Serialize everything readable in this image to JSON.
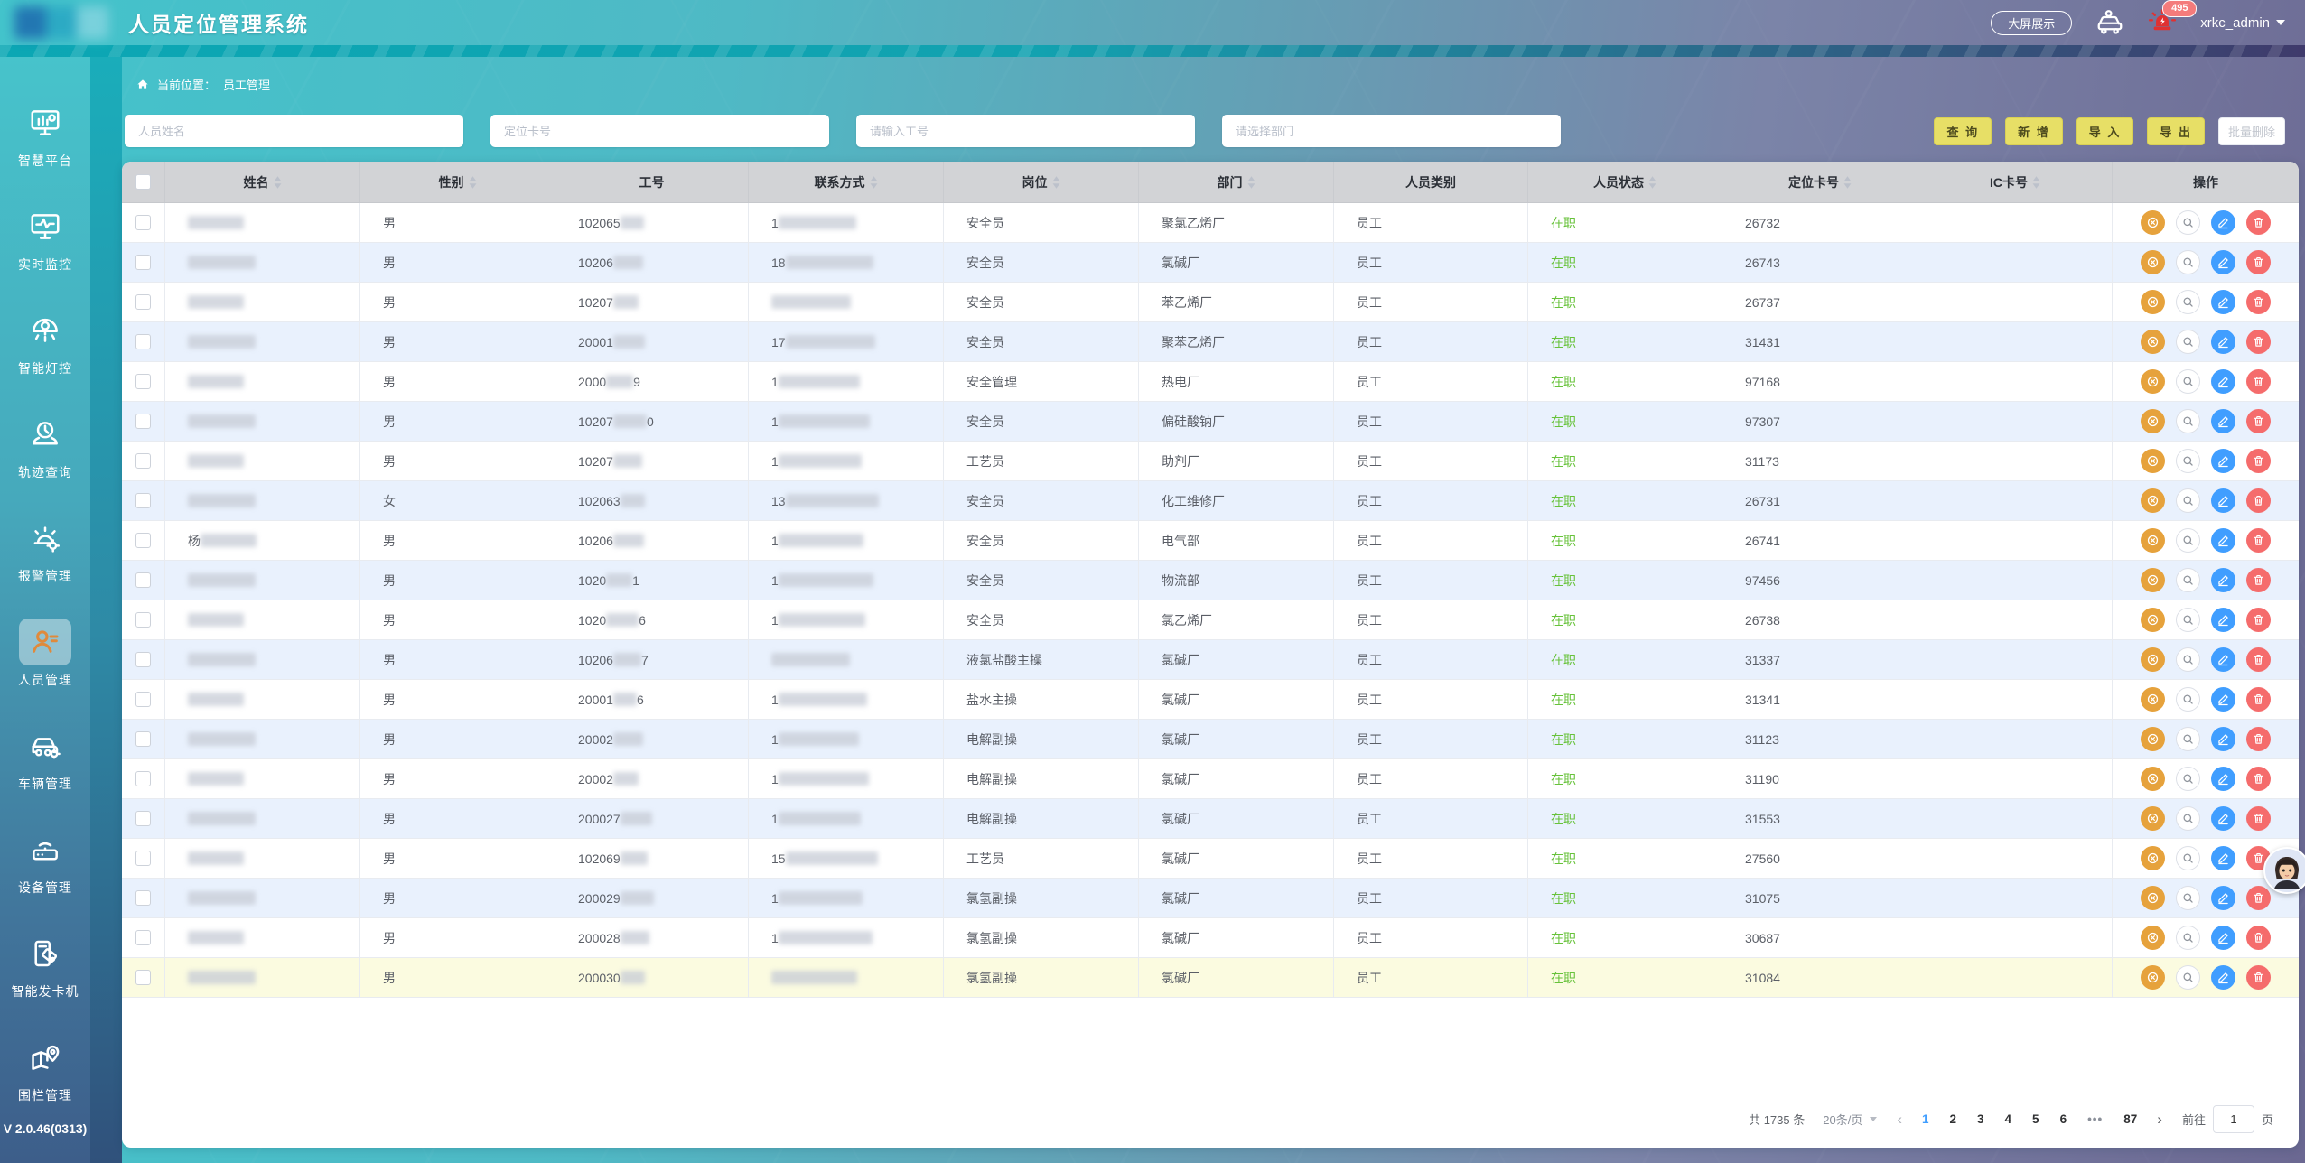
{
  "header": {
    "title": "人员定位管理系统",
    "big_screen_button": "大屏展示",
    "alarm_badge": "495",
    "username": "xrkc_admin"
  },
  "sidebar": {
    "version": "V 2.0.46(0313)",
    "items": [
      {
        "label": "智慧平台",
        "icon": "platform-icon",
        "active": false
      },
      {
        "label": "实时监控",
        "icon": "monitor-icon",
        "active": false
      },
      {
        "label": "智能灯控",
        "icon": "light-icon",
        "active": false
      },
      {
        "label": "轨迹查询",
        "icon": "track-icon",
        "active": false
      },
      {
        "label": "报警管理",
        "icon": "alarm-icon",
        "active": false
      },
      {
        "label": "人员管理",
        "icon": "person-icon",
        "active": true
      },
      {
        "label": "车辆管理",
        "icon": "vehicle-icon",
        "active": false
      },
      {
        "label": "设备管理",
        "icon": "device-icon",
        "active": false
      },
      {
        "label": "智能发卡机",
        "icon": "card-machine-icon",
        "active": false
      },
      {
        "label": "围栏管理",
        "icon": "fence-icon",
        "active": false
      }
    ]
  },
  "breadcrumb": {
    "label": "当前位置：",
    "page": "员工管理"
  },
  "search": {
    "inputs": [
      {
        "placeholder": "人员姓名"
      },
      {
        "placeholder": "定位卡号"
      },
      {
        "placeholder": "请输入工号"
      },
      {
        "placeholder": "请选择部门"
      }
    ],
    "buttons": [
      {
        "label": "查 询"
      },
      {
        "label": "新 增"
      },
      {
        "label": "导 入"
      },
      {
        "label": "导 出"
      }
    ],
    "disabled_button": "批量删除"
  },
  "table": {
    "columns": [
      {
        "label": "",
        "sortable": false
      },
      {
        "label": "姓名",
        "sortable": true
      },
      {
        "label": "性别",
        "sortable": true
      },
      {
        "label": "工号",
        "sortable": false
      },
      {
        "label": "联系方式",
        "sortable": true
      },
      {
        "label": "岗位",
        "sortable": true
      },
      {
        "label": "部门",
        "sortable": true
      },
      {
        "label": "人员类别",
        "sortable": false
      },
      {
        "label": "人员状态",
        "sortable": true
      },
      {
        "label": "定位卡号",
        "sortable": true
      },
      {
        "label": "IC卡号",
        "sortable": true
      },
      {
        "label": "操作",
        "sortable": false
      }
    ],
    "rows": [
      {
        "name_prefix": "",
        "gender": "男",
        "emp_prefix": "102065",
        "emp_suffix": "",
        "phone_prefix": "1",
        "job": "安全员",
        "dept": "聚氯乙烯厂",
        "type": "员工",
        "status": "在职",
        "card": "26732",
        "ic": "",
        "highlight": false
      },
      {
        "name_prefix": "",
        "gender": "男",
        "emp_prefix": "10206",
        "emp_suffix": "",
        "phone_prefix": "18",
        "job": "安全员",
        "dept": "氯碱厂",
        "type": "员工",
        "status": "在职",
        "card": "26743",
        "ic": "",
        "highlight": false
      },
      {
        "name_prefix": "",
        "gender": "男",
        "emp_prefix": "10207",
        "emp_suffix": "",
        "phone_prefix": "",
        "job": "安全员",
        "dept": "苯乙烯厂",
        "type": "员工",
        "status": "在职",
        "card": "26737",
        "ic": "",
        "highlight": false
      },
      {
        "name_prefix": "",
        "gender": "男",
        "emp_prefix": "20001",
        "emp_suffix": "",
        "phone_prefix": "17",
        "job": "安全员",
        "dept": "聚苯乙烯厂",
        "type": "员工",
        "status": "在职",
        "card": "31431",
        "ic": "",
        "highlight": false
      },
      {
        "name_prefix": "",
        "gender": "男",
        "emp_prefix": "2000",
        "emp_suffix": "9",
        "phone_prefix": "1",
        "job": "安全管理",
        "dept": "热电厂",
        "type": "员工",
        "status": "在职",
        "card": "97168",
        "ic": "",
        "highlight": false
      },
      {
        "name_prefix": "",
        "gender": "男",
        "emp_prefix": "10207",
        "emp_suffix": "0",
        "phone_prefix": "1",
        "job": "安全员",
        "dept": "偏硅酸钠厂",
        "type": "员工",
        "status": "在职",
        "card": "97307",
        "ic": "",
        "highlight": false
      },
      {
        "name_prefix": "",
        "gender": "男",
        "emp_prefix": "10207",
        "emp_suffix": "",
        "phone_prefix": "1",
        "job": "工艺员",
        "dept": "助剂厂",
        "type": "员工",
        "status": "在职",
        "card": "31173",
        "ic": "",
        "highlight": false
      },
      {
        "name_prefix": "",
        "gender": "女",
        "emp_prefix": "102063",
        "emp_suffix": "",
        "phone_prefix": "13",
        "job": "安全员",
        "dept": "化工维修厂",
        "type": "员工",
        "status": "在职",
        "card": "26731",
        "ic": "",
        "highlight": false
      },
      {
        "name_prefix": "杨",
        "gender": "男",
        "emp_prefix": "10206",
        "emp_suffix": "",
        "phone_prefix": "1",
        "job": "安全员",
        "dept": "电气部",
        "type": "员工",
        "status": "在职",
        "card": "26741",
        "ic": "",
        "highlight": false
      },
      {
        "name_prefix": "",
        "gender": "男",
        "emp_prefix": "1020",
        "emp_suffix": "1",
        "phone_prefix": "1",
        "job": "安全员",
        "dept": "物流部",
        "type": "员工",
        "status": "在职",
        "card": "97456",
        "ic": "",
        "highlight": false
      },
      {
        "name_prefix": "",
        "gender": "男",
        "emp_prefix": "1020",
        "emp_suffix": "6",
        "phone_prefix": "1",
        "job": "安全员",
        "dept": "氯乙烯厂",
        "type": "员工",
        "status": "在职",
        "card": "26738",
        "ic": "",
        "highlight": false
      },
      {
        "name_prefix": "",
        "gender": "男",
        "emp_prefix": "10206",
        "emp_suffix": "7",
        "phone_prefix": "",
        "job": "液氯盐酸主操",
        "dept": "氯碱厂",
        "type": "员工",
        "status": "在职",
        "card": "31337",
        "ic": "",
        "highlight": false
      },
      {
        "name_prefix": "",
        "gender": "男",
        "emp_prefix": "20001",
        "emp_suffix": "6",
        "phone_prefix": "1",
        "job": "盐水主操",
        "dept": "氯碱厂",
        "type": "员工",
        "status": "在职",
        "card": "31341",
        "ic": "",
        "highlight": false
      },
      {
        "name_prefix": "",
        "gender": "男",
        "emp_prefix": "20002",
        "emp_suffix": "",
        "phone_prefix": "1",
        "job": "电解副操",
        "dept": "氯碱厂",
        "type": "员工",
        "status": "在职",
        "card": "31123",
        "ic": "",
        "highlight": false
      },
      {
        "name_prefix": "",
        "gender": "男",
        "emp_prefix": "20002",
        "emp_suffix": "",
        "phone_prefix": "1",
        "job": "电解副操",
        "dept": "氯碱厂",
        "type": "员工",
        "status": "在职",
        "card": "31190",
        "ic": "",
        "highlight": false
      },
      {
        "name_prefix": "",
        "gender": "男",
        "emp_prefix": "200027",
        "emp_suffix": "",
        "phone_prefix": "1",
        "job": "电解副操",
        "dept": "氯碱厂",
        "type": "员工",
        "status": "在职",
        "card": "31553",
        "ic": "",
        "highlight": false
      },
      {
        "name_prefix": "",
        "gender": "男",
        "emp_prefix": "102069",
        "emp_suffix": "",
        "phone_prefix": "15",
        "job": "工艺员",
        "dept": "氯碱厂",
        "type": "员工",
        "status": "在职",
        "card": "27560",
        "ic": "",
        "highlight": false
      },
      {
        "name_prefix": "",
        "gender": "男",
        "emp_prefix": "200029",
        "emp_suffix": "",
        "phone_prefix": "1",
        "job": "氯氢副操",
        "dept": "氯碱厂",
        "type": "员工",
        "status": "在职",
        "card": "31075",
        "ic": "",
        "highlight": false
      },
      {
        "name_prefix": "",
        "gender": "男",
        "emp_prefix": "200028",
        "emp_suffix": "",
        "phone_prefix": "1",
        "job": "氯氢副操",
        "dept": "氯碱厂",
        "type": "员工",
        "status": "在职",
        "card": "30687",
        "ic": "",
        "highlight": false
      },
      {
        "name_prefix": "",
        "gender": "男",
        "emp_prefix": "200030",
        "emp_suffix": "",
        "phone_prefix": "",
        "job": "氯氢副操",
        "dept": "氯碱厂",
        "type": "员工",
        "status": "在职",
        "card": "31084",
        "ic": "",
        "highlight": true
      }
    ],
    "status_color": "#67c23a"
  },
  "pagination": {
    "total_label": "共 1735 条",
    "page_size_label": "20条/页",
    "pages": [
      "1",
      "2",
      "3",
      "4",
      "5",
      "6",
      "•••",
      "87"
    ],
    "current": "1",
    "goto_label": "前往",
    "goto_value": "1",
    "goto_unit": "页"
  }
}
